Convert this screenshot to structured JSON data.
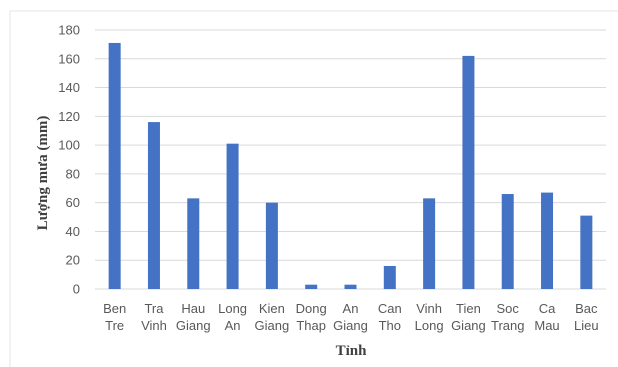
{
  "chart_data": {
    "type": "bar",
    "categories": [
      [
        "Ben",
        "Tre"
      ],
      [
        "Tra",
        "Vinh"
      ],
      [
        "Hau",
        "Giang"
      ],
      [
        "Long",
        "An"
      ],
      [
        "Kien",
        "Giang"
      ],
      [
        "Dong",
        "Thap"
      ],
      [
        "An",
        "Giang"
      ],
      [
        "Can",
        "Tho"
      ],
      [
        "Vinh",
        "Long"
      ],
      [
        "Tien",
        "Giang"
      ],
      [
        "Soc",
        "Trang"
      ],
      [
        "Ca",
        "Mau"
      ],
      [
        "Bac",
        "Lieu"
      ]
    ],
    "values": [
      171,
      116,
      63,
      101,
      60,
      3,
      3,
      16,
      63,
      162,
      66,
      67,
      51
    ],
    "xlabel": "Tỉnh",
    "ylabel": "Lượng mưa (mm)",
    "ylim": [
      0,
      180
    ],
    "yticks": [
      0,
      20,
      40,
      60,
      80,
      100,
      120,
      140,
      160,
      180
    ],
    "grid": true,
    "bar_color": "#4472C4",
    "grid_color": "#D9D9D9"
  }
}
